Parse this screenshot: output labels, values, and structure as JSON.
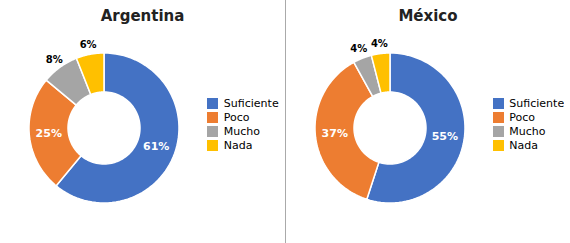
{
  "chart_data": [
    {
      "type": "pie",
      "title": "Argentina",
      "categories": [
        "Suficiente",
        "Poco",
        "Mucho",
        "Nada"
      ],
      "values": [
        61,
        25,
        8,
        6
      ],
      "value_labels": [
        "61%",
        "25%",
        "8%",
        "6%"
      ],
      "colors": [
        "#4472C4",
        "#ED7D31",
        "#A5A5A5",
        "#FFC000"
      ],
      "data_labels": true,
      "legend": "right"
    },
    {
      "type": "pie",
      "title": "México",
      "categories": [
        "Suficiente",
        "Poco",
        "Mucho",
        "Nada"
      ],
      "values": [
        55,
        37,
        4,
        4
      ],
      "value_labels": [
        "55%",
        "37%",
        "4%",
        "4%"
      ],
      "colors": [
        "#4472C4",
        "#ED7D31",
        "#A5A5A5",
        "#FFC000"
      ],
      "data_labels": true,
      "legend": "right"
    }
  ]
}
